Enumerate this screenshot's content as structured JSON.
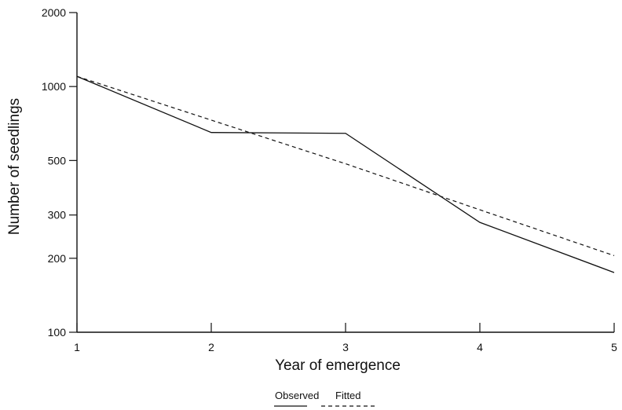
{
  "chart_data": {
    "type": "line",
    "title": "",
    "xlabel": "Year of emergence",
    "ylabel": "Number of seedlings",
    "yscale": "log",
    "xlim": [
      1,
      5
    ],
    "ylim": [
      100,
      2000
    ],
    "x_ticks": [
      1,
      2,
      3,
      4,
      5
    ],
    "y_ticks": [
      100,
      200,
      300,
      500,
      1000,
      2000
    ],
    "grid": false,
    "legend_position": "bottom-center",
    "series": [
      {
        "name": "Observed",
        "style": "solid",
        "x": [
          1,
          2,
          3,
          4,
          5
        ],
        "y": [
          1100,
          650,
          645,
          280,
          175
        ]
      },
      {
        "name": "Fitted",
        "style": "dashed",
        "x": [
          1,
          2,
          3,
          4,
          5
        ],
        "y": [
          1100,
          730,
          485,
          315,
          205
        ]
      }
    ]
  }
}
